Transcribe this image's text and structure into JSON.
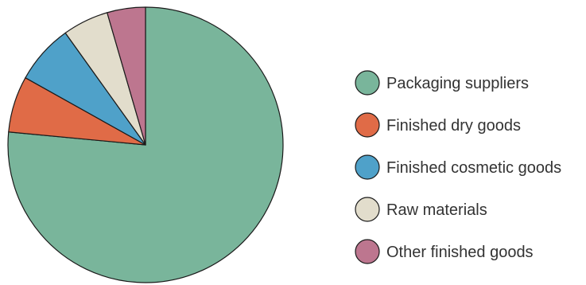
{
  "chart_data": {
    "type": "pie",
    "title": "",
    "start_angle": "12 o'clock",
    "direction": "clockwise",
    "legend_position": "right",
    "slices": [
      {
        "label": "Packaging suppliers",
        "value": 76.5,
        "color": "#79b59b"
      },
      {
        "label": "Finished dry goods",
        "value": 6.6,
        "color": "#e06b47"
      },
      {
        "label": "Finished cosmetic goods",
        "value": 7.0,
        "color": "#4fa1c9"
      },
      {
        "label": "Raw materials",
        "value": 5.4,
        "color": "#e2ddcc"
      },
      {
        "label": "Other finished goods",
        "value": 4.5,
        "color": "#bd768f"
      }
    ]
  }
}
